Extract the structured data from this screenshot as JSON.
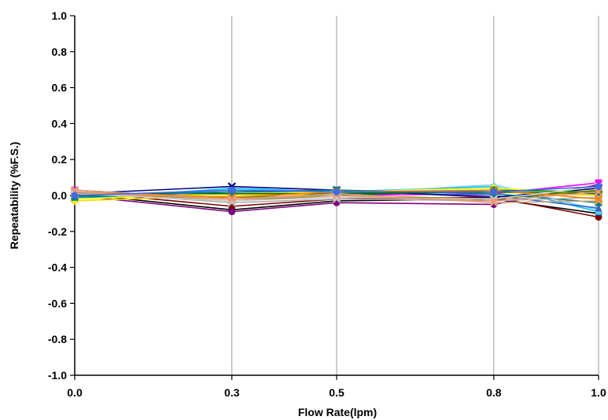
{
  "chart_data": {
    "type": "line",
    "title": "",
    "xlabel": "Flow Rate(lpm)",
    "ylabel": "Repeatability (%F.S.)",
    "x": [
      0.0,
      0.3,
      0.5,
      0.8,
      1.0
    ],
    "x_tick_labels": [
      "0.0",
      "0.3",
      "0.5",
      "0.8",
      "1.0"
    ],
    "xlim": [
      0.0,
      1.0
    ],
    "ylim": [
      -1.0,
      1.0
    ],
    "y_ticks": [
      1.0,
      0.8,
      0.6,
      0.4,
      0.2,
      0.0,
      -0.2,
      -0.4,
      -0.6,
      -0.8,
      -1.0
    ],
    "y_tick_labels": [
      "1.0",
      "0.8",
      "0.6",
      "0.4",
      "0.2",
      "0.0",
      "-0.2",
      "-0.4",
      "-0.6",
      "-0.8",
      "-1.0"
    ],
    "grid": "vertical",
    "legend": "none",
    "series": [
      {
        "color": "#000000",
        "marker": "circle",
        "values": [
          0.01,
          -0.08,
          -0.03,
          -0.02,
          -0.1
        ]
      },
      {
        "color": "#7f0000",
        "marker": "circle",
        "values": [
          0.02,
          -0.06,
          -0.02,
          -0.01,
          -0.12
        ]
      },
      {
        "color": "#7f007f",
        "marker": "circle",
        "values": [
          0.0,
          -0.09,
          -0.04,
          -0.05,
          0.06
        ]
      },
      {
        "color": "#ff00ff",
        "marker": "square",
        "values": [
          0.03,
          -0.02,
          0.0,
          0.01,
          0.07
        ]
      },
      {
        "color": "#00bfff",
        "marker": "triangle",
        "values": [
          -0.02,
          0.04,
          0.02,
          0.05,
          -0.09
        ]
      },
      {
        "color": "#87ceeb",
        "marker": "triangle",
        "values": [
          -0.01,
          0.03,
          0.01,
          0.06,
          -0.08
        ]
      },
      {
        "color": "#3366cc",
        "marker": "triangle",
        "values": [
          0.0,
          0.02,
          0.02,
          0.0,
          -0.07
        ]
      },
      {
        "color": "#000080",
        "marker": "x",
        "values": [
          0.01,
          0.05,
          0.03,
          -0.01,
          0.04
        ]
      },
      {
        "color": "#ffd700",
        "marker": "diamond",
        "values": [
          -0.03,
          0.0,
          0.01,
          0.02,
          0.0
        ]
      },
      {
        "color": "#ffff00",
        "marker": "diamond",
        "values": [
          -0.02,
          0.01,
          0.02,
          0.04,
          0.01
        ]
      },
      {
        "color": "#008000",
        "marker": "square",
        "values": [
          0.0,
          -0.01,
          0.0,
          0.03,
          0.02
        ]
      },
      {
        "color": "#006400",
        "marker": "circle",
        "values": [
          0.01,
          0.01,
          0.01,
          0.02,
          0.01
        ]
      },
      {
        "color": "#808000",
        "marker": "circle",
        "values": [
          0.02,
          -0.03,
          0.0,
          -0.02,
          0.03
        ]
      },
      {
        "color": "#008080",
        "marker": "square",
        "values": [
          -0.01,
          0.02,
          0.03,
          0.01,
          -0.04
        ]
      },
      {
        "color": "#b0b0b0",
        "marker": "x",
        "values": [
          0.02,
          -0.04,
          -0.02,
          -0.03,
          -0.01
        ]
      },
      {
        "color": "#d2a679",
        "marker": "x",
        "values": [
          0.03,
          -0.02,
          0.01,
          -0.04,
          -0.03
        ]
      },
      {
        "color": "#ff7f00",
        "marker": "x",
        "values": [
          0.02,
          -0.01,
          0.02,
          0.03,
          -0.02
        ]
      },
      {
        "color": "#cccccc",
        "marker": "x",
        "values": [
          0.01,
          -0.03,
          -0.01,
          -0.02,
          0.05
        ]
      },
      {
        "color": "#e9967a",
        "marker": "x",
        "values": [
          0.02,
          -0.02,
          0.0,
          -0.03,
          0.02
        ]
      },
      {
        "color": "#4169e1",
        "marker": "circle",
        "values": [
          0.0,
          0.03,
          0.02,
          0.02,
          0.05
        ]
      }
    ]
  }
}
